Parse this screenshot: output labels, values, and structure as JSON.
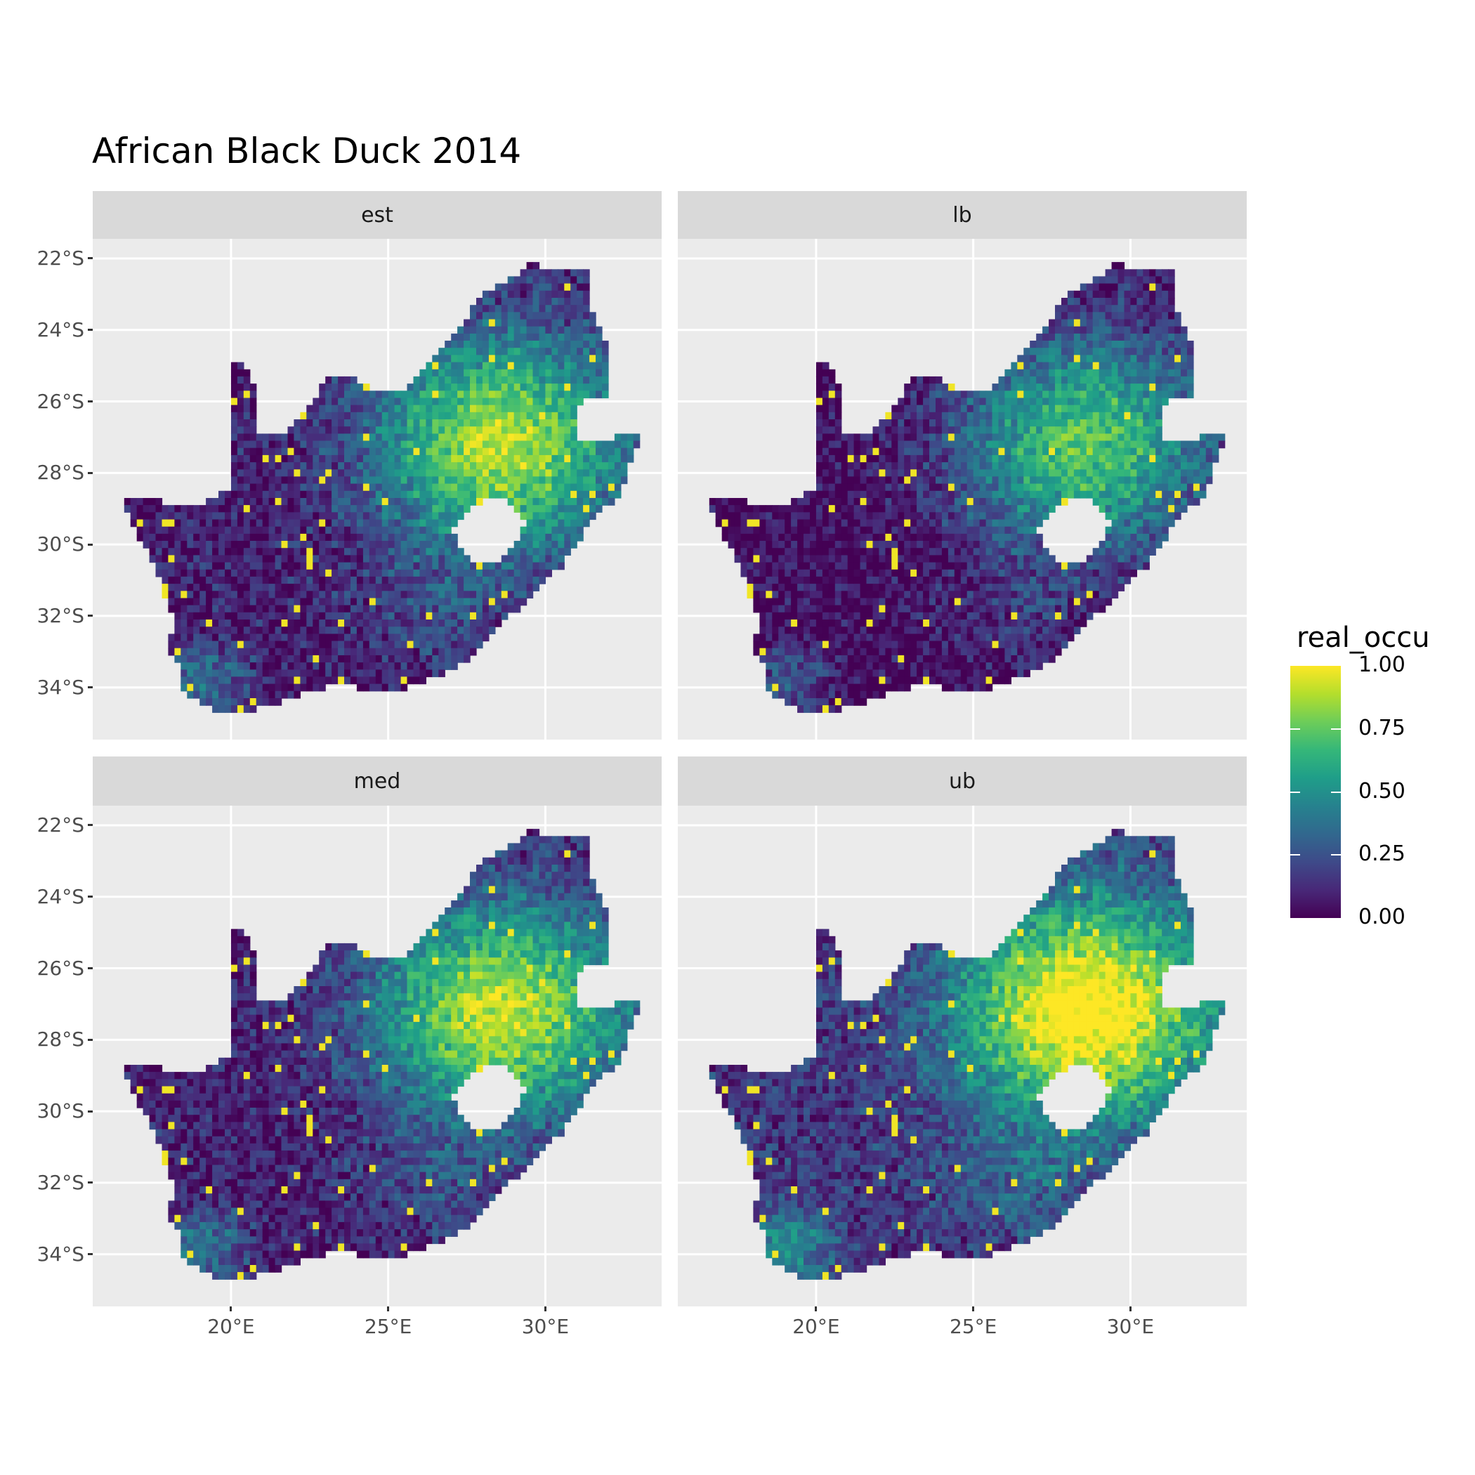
{
  "chart_data": {
    "type": "heatmap",
    "title": "African Black Duck 2014",
    "xlabel": "",
    "ylabel": "",
    "facets": [
      {
        "label": "est",
        "offset": 0.0
      },
      {
        "label": "lb",
        "offset": -0.12
      },
      {
        "label": "med",
        "offset": 0.02
      },
      {
        "label": "ub",
        "offset": 0.16
      }
    ],
    "x_ticks": [
      {
        "value": 20,
        "label": "20°E"
      },
      {
        "value": 25,
        "label": "25°E"
      },
      {
        "value": 30,
        "label": "30°E"
      }
    ],
    "y_ticks": [
      {
        "value": -22,
        "label": "22°S"
      },
      {
        "value": -24,
        "label": "24°S"
      },
      {
        "value": -26,
        "label": "26°S"
      },
      {
        "value": -28,
        "label": "28°S"
      },
      {
        "value": -30,
        "label": "30°S"
      },
      {
        "value": -32,
        "label": "32°S"
      },
      {
        "value": -34,
        "label": "34°S"
      }
    ],
    "xlim": [
      15.6,
      33.7
    ],
    "ylim": [
      -35.46,
      -21.45
    ],
    "grid": true,
    "legend": {
      "title": "real_occu",
      "position": "right",
      "range": [
        0,
        1
      ],
      "breaks": [
        {
          "value": 1.0,
          "label": "1.00"
        },
        {
          "value": 0.75,
          "label": "0.75"
        },
        {
          "value": 0.5,
          "label": "0.50"
        },
        {
          "value": 0.25,
          "label": "0.25"
        },
        {
          "value": 0.0,
          "label": "0.00"
        }
      ],
      "palette": [
        "#440154",
        "#482878",
        "#3E4A89",
        "#31688E",
        "#26828E",
        "#1F9E89",
        "#35B779",
        "#6DCD59",
        "#B4DE2C",
        "#FDE725"
      ]
    },
    "region": "South Africa (occupancy raster, Lesotho excluded)"
  }
}
